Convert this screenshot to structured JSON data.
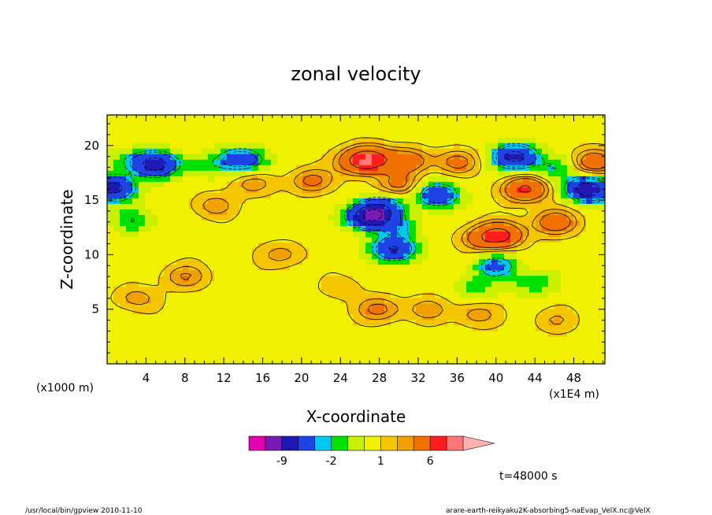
{
  "chart_data": {
    "type": "heatmap",
    "title": "zonal velocity",
    "xlabel": "X-coordinate",
    "ylabel": "Z-coordinate",
    "x_unit_left": "(x1000 m)",
    "x_unit_right": "(x1E4 m)",
    "xlim": [
      0,
      51.2
    ],
    "ylim": [
      0,
      22.8
    ],
    "x_ticks": [
      4,
      8,
      12,
      16,
      20,
      24,
      28,
      32,
      36,
      40,
      44,
      48
    ],
    "y_ticks": [
      5,
      10,
      15,
      20
    ],
    "colorbar": {
      "levels": [
        -12,
        -9,
        -6,
        -3,
        -2,
        -1,
        0,
        1,
        2,
        3,
        6,
        9
      ],
      "colors": [
        "#e100b4",
        "#7a1ab4",
        "#1f1ab4",
        "#1e44e6",
        "#00c8f0",
        "#00e100",
        "#c8f000",
        "#f0f000",
        "#f5c500",
        "#f0a000",
        "#f07000",
        "#ff1e1e",
        "#ff7878",
        "#ffb0b0"
      ],
      "tick_labels": [
        "-9",
        "-2",
        "1",
        "6"
      ],
      "tick_levels": [
        -9,
        -2,
        1,
        6
      ],
      "extend": "max"
    },
    "time_label": "t=48000 s",
    "features": [
      {
        "x": 5,
        "z": 18.3,
        "u": -8
      },
      {
        "x": 2,
        "z": 18.6,
        "u": -2
      },
      {
        "x": 0.6,
        "z": 16.1,
        "u": -8
      },
      {
        "x": 2.8,
        "z": 13.2,
        "u": -2.5
      },
      {
        "x": 10,
        "z": 18.2,
        "u": -2
      },
      {
        "x": 13.5,
        "z": 18.8,
        "u": -4
      },
      {
        "x": 15,
        "z": 18.6,
        "u": -2
      },
      {
        "x": 21,
        "z": 16.8,
        "u": 3
      },
      {
        "x": 15,
        "z": 16.5,
        "u": 2
      },
      {
        "x": 26,
        "z": 18.5,
        "u": 4
      },
      {
        "x": 27,
        "z": 18.8,
        "u": 6
      },
      {
        "x": 31,
        "z": 18.6,
        "u": 4
      },
      {
        "x": 30,
        "z": 16.4,
        "u": 3
      },
      {
        "x": 28.5,
        "z": 14.5,
        "u": -4
      },
      {
        "x": 27,
        "z": 13.5,
        "u": -10
      },
      {
        "x": 30,
        "z": 12.5,
        "u": -2.5
      },
      {
        "x": 29.5,
        "z": 10.5,
        "u": -7
      },
      {
        "x": 34,
        "z": 15.5,
        "u": -6
      },
      {
        "x": 36,
        "z": 18.5,
        "u": 3
      },
      {
        "x": 38.5,
        "z": 11.5,
        "u": 3
      },
      {
        "x": 40.5,
        "z": 11.8,
        "u": 6
      },
      {
        "x": 43,
        "z": 16,
        "u": 6
      },
      {
        "x": 46,
        "z": 13,
        "u": 4
      },
      {
        "x": 42,
        "z": 19,
        "u": -8
      },
      {
        "x": 46,
        "z": 18,
        "u": -2.5
      },
      {
        "x": 49.5,
        "z": 16,
        "u": -9
      },
      {
        "x": 50,
        "z": 18.5,
        "u": 4
      },
      {
        "x": 40,
        "z": 9,
        "u": -4
      },
      {
        "x": 44,
        "z": 7.5,
        "u": -2.5
      },
      {
        "x": 38,
        "z": 7,
        "u": -2
      },
      {
        "x": 28,
        "z": 5,
        "u": 3
      },
      {
        "x": 33,
        "z": 5,
        "u": 2
      },
      {
        "x": 38,
        "z": 4.5,
        "u": 2
      },
      {
        "x": 8,
        "z": 8,
        "u": 2.5
      },
      {
        "x": 3,
        "z": 6,
        "u": 2
      },
      {
        "x": 18,
        "z": 10,
        "u": 2
      },
      {
        "x": 11,
        "z": 14.5,
        "u": 2
      },
      {
        "x": 24,
        "z": 7,
        "u": 1.2
      },
      {
        "x": 46,
        "z": 4,
        "u": 1.5
      }
    ]
  },
  "footer": {
    "left": "/usr/local/bin/gpview  2010-11-10",
    "right": "arare-earth-reikyaku2K-absorbing5-naEvap_VelX.nc@VelX"
  }
}
